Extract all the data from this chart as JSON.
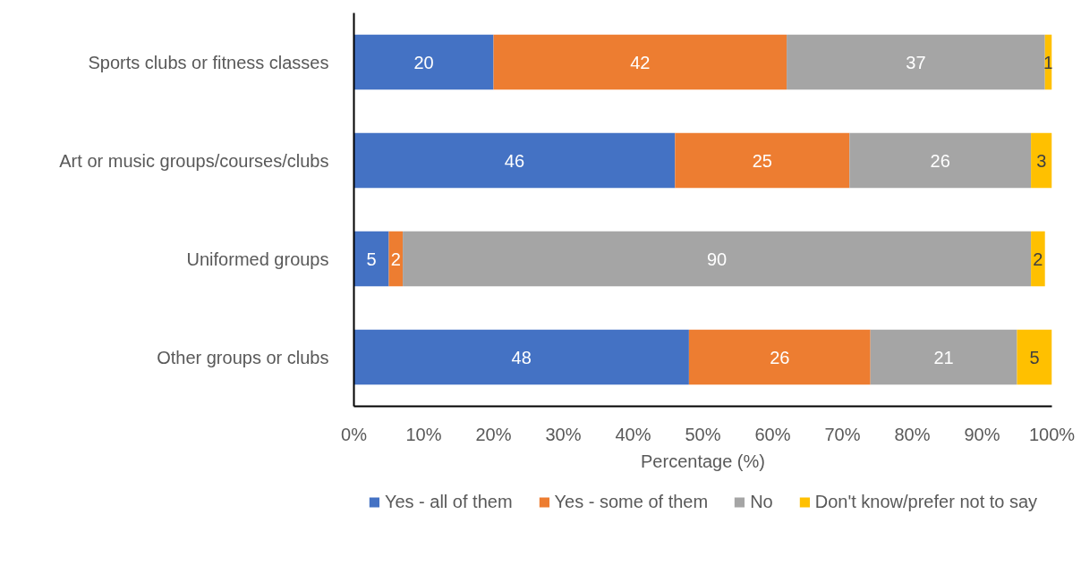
{
  "chart_data": {
    "type": "bar",
    "orientation": "horizontal",
    "stacked": true,
    "data_labels": true,
    "grid": false,
    "legend": "bottom",
    "xlabel": "Percentage (%)",
    "categories": [
      "Sports clubs or fitness classes",
      "Art or music groups/courses/clubs",
      "Uniformed groups",
      "Other groups or clubs"
    ],
    "xlim": [
      0,
      100
    ],
    "xticks": [
      {
        "value": 0,
        "label": "0%"
      },
      {
        "value": 10,
        "label": "10%"
      },
      {
        "value": 20,
        "label": "20%"
      },
      {
        "value": 30,
        "label": "30%"
      },
      {
        "value": 40,
        "label": "40%"
      },
      {
        "value": 50,
        "label": "50%"
      },
      {
        "value": 60,
        "label": "60%"
      },
      {
        "value": 70,
        "label": "70%"
      },
      {
        "value": 80,
        "label": "80%"
      },
      {
        "value": 90,
        "label": "90%"
      },
      {
        "value": 100,
        "label": "100%"
      }
    ],
    "series": [
      {
        "name": "Yes - all of them",
        "color": "#4472c4",
        "values": [
          20,
          46,
          5,
          48
        ]
      },
      {
        "name": "Yes - some of them",
        "color": "#ed7d31",
        "values": [
          42,
          25,
          2,
          26
        ]
      },
      {
        "name": "No",
        "color": "#a5a5a5",
        "values": [
          37,
          26,
          90,
          21
        ]
      },
      {
        "name": "Don't know/prefer not to say",
        "color": "#ffc000",
        "values": [
          1,
          3,
          2,
          5
        ]
      }
    ]
  }
}
